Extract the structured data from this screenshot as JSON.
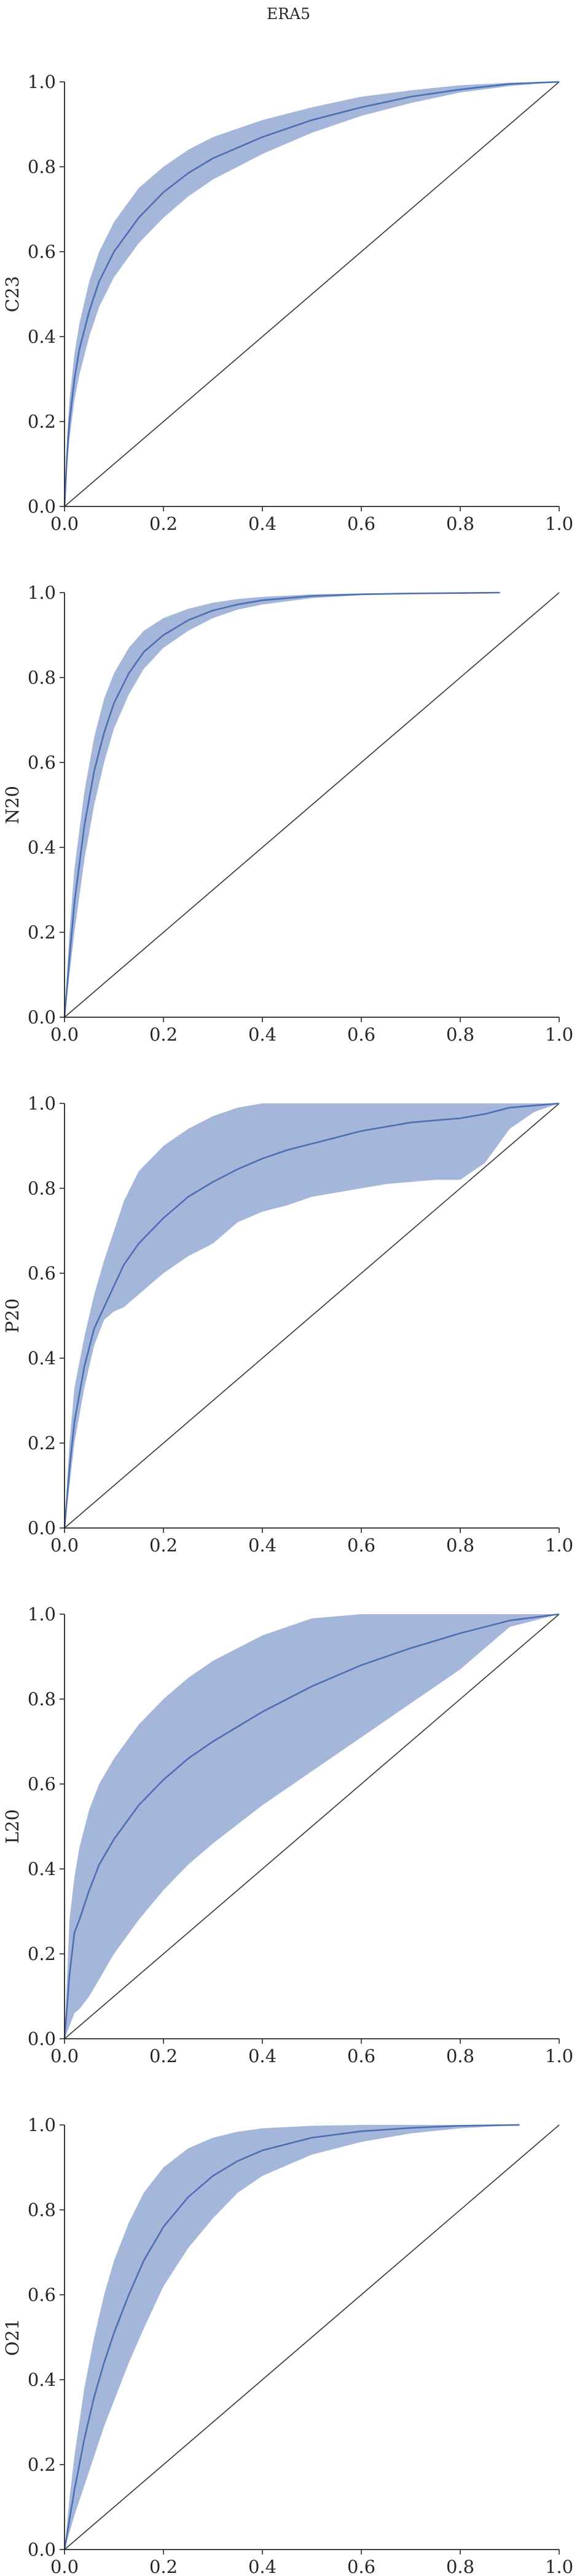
{
  "figure": {
    "title": "ERA5"
  },
  "colors": {
    "band": "#9fb2d8",
    "line": "#4c6fb3",
    "diagonal": "#333333",
    "axis": "#262626"
  },
  "chart_data": [
    {
      "type": "line",
      "ylabel": "C23",
      "xlim": [
        0,
        1
      ],
      "ylim": [
        0,
        1
      ],
      "xticks": [
        "0.0",
        "0.2",
        "0.4",
        "0.6",
        "0.8",
        "1.0"
      ],
      "yticks": [
        "0.0",
        "0.2",
        "0.4",
        "0.6",
        "0.8",
        "1.0"
      ],
      "grid": false,
      "reference_line": [
        [
          0,
          0
        ],
        [
          1,
          1
        ]
      ],
      "series": [
        {
          "x": [
            0.0,
            0.005,
            0.01,
            0.02,
            0.03,
            0.05,
            0.07,
            0.1,
            0.15,
            0.2,
            0.25,
            0.3,
            0.4,
            0.5,
            0.6,
            0.7,
            0.8,
            0.9,
            1.0
          ],
          "y": [
            0.0,
            0.12,
            0.2,
            0.3,
            0.37,
            0.46,
            0.53,
            0.6,
            0.68,
            0.74,
            0.785,
            0.82,
            0.87,
            0.91,
            0.94,
            0.965,
            0.982,
            0.995,
            1.0
          ],
          "lower": [
            0.0,
            0.09,
            0.16,
            0.25,
            0.31,
            0.4,
            0.47,
            0.54,
            0.62,
            0.68,
            0.73,
            0.77,
            0.83,
            0.88,
            0.92,
            0.95,
            0.975,
            0.99,
            1.0
          ],
          "upper": [
            0.0,
            0.16,
            0.25,
            0.36,
            0.43,
            0.53,
            0.6,
            0.67,
            0.75,
            0.8,
            0.84,
            0.87,
            0.91,
            0.94,
            0.965,
            0.98,
            0.992,
            0.998,
            1.0
          ]
        }
      ]
    },
    {
      "type": "line",
      "ylabel": "N20",
      "xlim": [
        0,
        1
      ],
      "ylim": [
        0,
        1
      ],
      "xticks": [
        "0.0",
        "0.2",
        "0.4",
        "0.6",
        "0.8",
        "1.0"
      ],
      "yticks": [
        "0.0",
        "0.2",
        "0.4",
        "0.6",
        "0.8",
        "1.0"
      ],
      "grid": false,
      "reference_line": [
        [
          0,
          0
        ],
        [
          1,
          1
        ]
      ],
      "series": [
        {
          "x": [
            0.0,
            0.01,
            0.02,
            0.04,
            0.06,
            0.08,
            0.1,
            0.13,
            0.16,
            0.2,
            0.25,
            0.3,
            0.35,
            0.4,
            0.5,
            0.6,
            0.7,
            0.8,
            0.88
          ],
          "y": [
            0.0,
            0.14,
            0.27,
            0.45,
            0.58,
            0.67,
            0.74,
            0.81,
            0.86,
            0.9,
            0.935,
            0.958,
            0.972,
            0.982,
            0.992,
            0.996,
            0.998,
            0.999,
            1.0
          ],
          "lower": [
            0.0,
            0.1,
            0.2,
            0.37,
            0.5,
            0.6,
            0.68,
            0.76,
            0.82,
            0.87,
            0.91,
            0.94,
            0.96,
            0.972,
            0.987,
            0.994,
            0.997,
            0.999,
            1.0
          ],
          "upper": [
            0.0,
            0.2,
            0.35,
            0.53,
            0.66,
            0.75,
            0.81,
            0.87,
            0.91,
            0.94,
            0.962,
            0.976,
            0.985,
            0.99,
            0.996,
            0.998,
            0.999,
            1.0,
            1.0
          ]
        }
      ]
    },
    {
      "type": "line",
      "ylabel": "P20",
      "xlim": [
        0,
        1
      ],
      "ylim": [
        0,
        1
      ],
      "xticks": [
        "0.0",
        "0.2",
        "0.4",
        "0.6",
        "0.8",
        "1.0"
      ],
      "yticks": [
        "0.0",
        "0.2",
        "0.4",
        "0.6",
        "0.8",
        "1.0"
      ],
      "grid": false,
      "reference_line": [
        [
          0,
          0
        ],
        [
          1,
          1
        ]
      ],
      "series": [
        {
          "x": [
            0.0,
            0.01,
            0.02,
            0.04,
            0.06,
            0.08,
            0.1,
            0.12,
            0.15,
            0.2,
            0.25,
            0.3,
            0.35,
            0.4,
            0.45,
            0.5,
            0.55,
            0.6,
            0.65,
            0.7,
            0.75,
            0.8,
            0.85,
            0.9,
            0.95,
            1.0
          ],
          "y": [
            0.0,
            0.14,
            0.25,
            0.38,
            0.47,
            0.52,
            0.57,
            0.62,
            0.67,
            0.73,
            0.78,
            0.815,
            0.845,
            0.87,
            0.89,
            0.905,
            0.92,
            0.935,
            0.945,
            0.955,
            0.96,
            0.965,
            0.975,
            0.99,
            0.995,
            1.0
          ],
          "lower": [
            0.0,
            0.1,
            0.2,
            0.33,
            0.43,
            0.49,
            0.51,
            0.52,
            0.55,
            0.6,
            0.64,
            0.67,
            0.72,
            0.745,
            0.76,
            0.78,
            0.79,
            0.8,
            0.81,
            0.815,
            0.82,
            0.82,
            0.86,
            0.94,
            0.98,
            1.0
          ],
          "upper": [
            0.0,
            0.2,
            0.33,
            0.45,
            0.55,
            0.63,
            0.7,
            0.77,
            0.84,
            0.9,
            0.94,
            0.97,
            0.99,
            1.0,
            1.0,
            1.0,
            1.0,
            1.0,
            1.0,
            1.0,
            1.0,
            1.0,
            1.0,
            1.0,
            1.0,
            1.0
          ]
        }
      ]
    },
    {
      "type": "line",
      "ylabel": "L20",
      "xlim": [
        0,
        1
      ],
      "ylim": [
        0,
        1
      ],
      "xticks": [
        "0.0",
        "0.2",
        "0.4",
        "0.6",
        "0.8",
        "1.0"
      ],
      "yticks": [
        "0.0",
        "0.2",
        "0.4",
        "0.6",
        "0.8",
        "1.0"
      ],
      "grid": false,
      "reference_line": [
        [
          0,
          0
        ],
        [
          1,
          1
        ]
      ],
      "series": [
        {
          "x": [
            0.0,
            0.01,
            0.02,
            0.03,
            0.05,
            0.07,
            0.1,
            0.15,
            0.2,
            0.25,
            0.3,
            0.4,
            0.5,
            0.6,
            0.7,
            0.8,
            0.9,
            1.0
          ],
          "y": [
            0.0,
            0.15,
            0.25,
            0.28,
            0.35,
            0.41,
            0.47,
            0.55,
            0.61,
            0.66,
            0.7,
            0.77,
            0.83,
            0.88,
            0.92,
            0.955,
            0.985,
            1.0
          ],
          "lower": [
            0.0,
            0.03,
            0.06,
            0.07,
            0.1,
            0.14,
            0.2,
            0.28,
            0.35,
            0.41,
            0.46,
            0.55,
            0.63,
            0.71,
            0.79,
            0.87,
            0.97,
            1.0
          ],
          "upper": [
            0.0,
            0.28,
            0.38,
            0.45,
            0.54,
            0.6,
            0.66,
            0.74,
            0.8,
            0.85,
            0.89,
            0.95,
            0.99,
            1.0,
            1.0,
            1.0,
            1.0,
            1.0
          ]
        }
      ]
    },
    {
      "type": "line",
      "ylabel": "O21",
      "xlim": [
        0,
        1
      ],
      "ylim": [
        0,
        1
      ],
      "xticks": [
        "0.0",
        "0.2",
        "0.4",
        "0.6",
        "0.8",
        "1.0"
      ],
      "yticks": [
        "0.0",
        "0.2",
        "0.4",
        "0.6",
        "0.8",
        "1.0"
      ],
      "grid": false,
      "reference_line": [
        [
          0,
          0
        ],
        [
          1,
          1
        ]
      ],
      "series": [
        {
          "x": [
            0.0,
            0.01,
            0.02,
            0.04,
            0.06,
            0.08,
            0.1,
            0.13,
            0.16,
            0.2,
            0.25,
            0.3,
            0.35,
            0.4,
            0.5,
            0.6,
            0.7,
            0.8,
            0.92
          ],
          "y": [
            0.0,
            0.07,
            0.14,
            0.26,
            0.36,
            0.44,
            0.51,
            0.6,
            0.68,
            0.76,
            0.83,
            0.88,
            0.915,
            0.94,
            0.97,
            0.985,
            0.993,
            0.998,
            1.0
          ],
          "lower": [
            0.0,
            0.04,
            0.08,
            0.15,
            0.22,
            0.29,
            0.35,
            0.44,
            0.52,
            0.62,
            0.71,
            0.78,
            0.84,
            0.88,
            0.93,
            0.96,
            0.98,
            0.992,
            1.0
          ],
          "upper": [
            0.0,
            0.12,
            0.22,
            0.38,
            0.5,
            0.6,
            0.68,
            0.77,
            0.84,
            0.9,
            0.945,
            0.97,
            0.984,
            0.992,
            0.998,
            1.0,
            1.0,
            1.0,
            1.0
          ]
        }
      ]
    }
  ]
}
